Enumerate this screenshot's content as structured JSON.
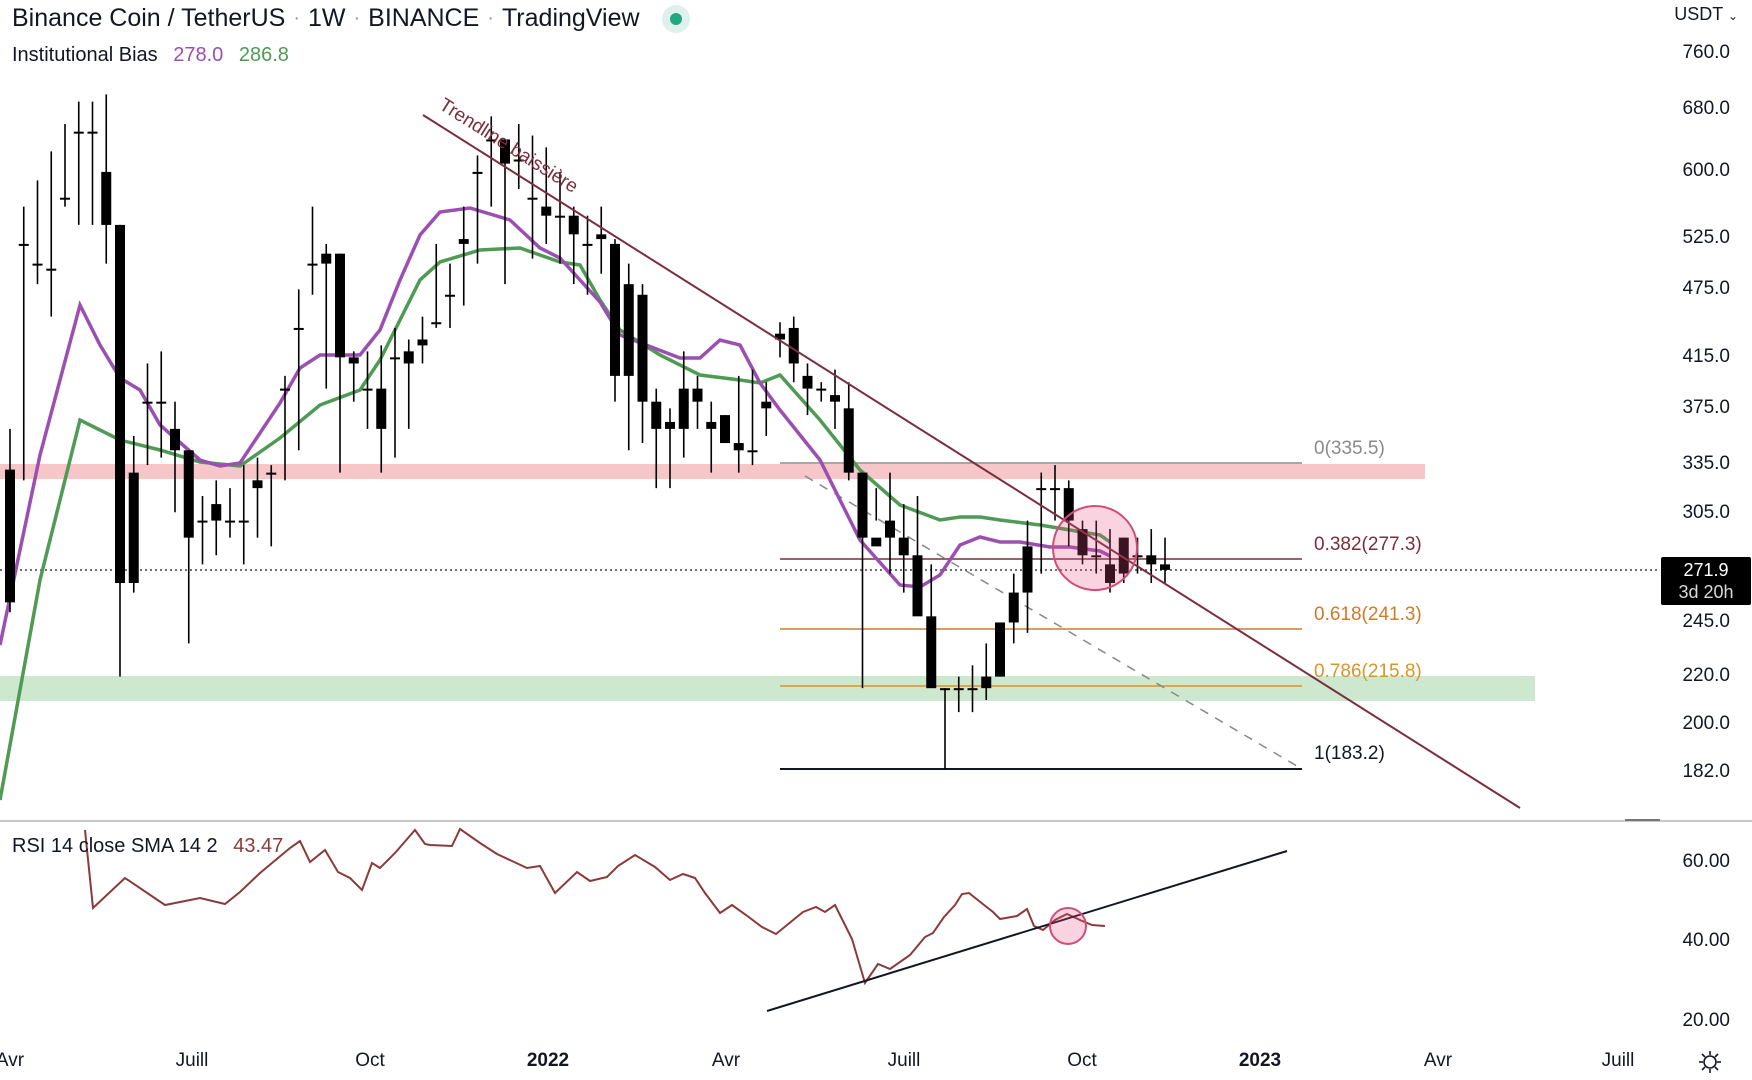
{
  "header": {
    "symbol": "Binance Coin / TetherUS",
    "interval": "1W",
    "exchange": "BINANCE",
    "source": "TradingView",
    "status_icon": "market-open-dot",
    "status_color": "#22a77f"
  },
  "indicator": {
    "name": "Institutional Bias",
    "value_fast": "278.0",
    "value_slow": "286.8",
    "color_fast": "#9b4fb0",
    "color_slow": "#4f9a55"
  },
  "rsi": {
    "label": "RSI 14 close SMA 14 2",
    "value": "43.47",
    "color": "#8b3a3a"
  },
  "price_axis": {
    "currency": "USDT",
    "ticks": [
      "760.0",
      "680.0",
      "600.0",
      "525.0",
      "475.0",
      "415.0",
      "375.0",
      "335.0",
      "305.0",
      "245.0",
      "220.0",
      "200.0",
      "182.0"
    ],
    "current_price": "271.9",
    "countdown": "3d 20h"
  },
  "rsi_axis": {
    "ticks": [
      "60.00",
      "40.00",
      "20.00"
    ]
  },
  "time_axis": {
    "ticks": [
      "Avr",
      "Juill",
      "Oct",
      "2022",
      "Avr",
      "Juill",
      "Oct",
      "2023",
      "Avr",
      "Juill"
    ]
  },
  "annotations": {
    "trendline_label": "Trendline baissière",
    "fib": [
      {
        "label": "0(335.5)",
        "color": "#8a8a8a"
      },
      {
        "label": "0.382(277.3)",
        "color": "#7a2e3e"
      },
      {
        "label": "0.618(241.3)",
        "color": "#d07a2a"
      },
      {
        "label": "0.786(215.8)",
        "color": "#d9952a"
      },
      {
        "label": "1(183.2)",
        "color": "#131722"
      }
    ],
    "resistance_zone_color": "#f7c6c9",
    "support_zone_color": "#cde8cf"
  },
  "chart_data": {
    "type": "candlestick",
    "title": "Binance Coin / TetherUS · 1W · BINANCE",
    "xlabel": "",
    "ylabel": "USDT",
    "ylim": [
      170,
      780
    ],
    "x_ticks": [
      "Avr 2021",
      "Juill 2021",
      "Oct 2021",
      "2022",
      "Avr 2022",
      "Juill 2022",
      "Oct 2022",
      "2023",
      "Avr 2023",
      "Juill 2023"
    ],
    "candles_ohlc_approx": [
      [
        332,
        360,
        250,
        255
      ],
      [
        520,
        560,
        325,
        520
      ],
      [
        500,
        590,
        480,
        500
      ],
      [
        495,
        625,
        450,
        495
      ],
      [
        570,
        660,
        560,
        570
      ],
      [
        650,
        690,
        540,
        650
      ],
      [
        650,
        690,
        540,
        650
      ],
      [
        600,
        700,
        500,
        540
      ],
      [
        540,
        540,
        220,
        265
      ],
      [
        330,
        355,
        260,
        265
      ],
      [
        380,
        410,
        335,
        380
      ],
      [
        380,
        420,
        340,
        380
      ],
      [
        360,
        380,
        305,
        345
      ],
      [
        345,
        345,
        235,
        290
      ],
      [
        300,
        315,
        275,
        300
      ],
      [
        310,
        325,
        280,
        300
      ],
      [
        300,
        320,
        290,
        300
      ],
      [
        300,
        335,
        275,
        300
      ],
      [
        320,
        340,
        290,
        325
      ],
      [
        330,
        335,
        285,
        330
      ],
      [
        390,
        400,
        325,
        390
      ],
      [
        440,
        475,
        345,
        440
      ],
      [
        500,
        560,
        470,
        500
      ],
      [
        500,
        520,
        390,
        510
      ],
      [
        510,
        510,
        330,
        415
      ],
      [
        415,
        420,
        380,
        410
      ],
      [
        390,
        420,
        360,
        390
      ],
      [
        390,
        425,
        330,
        360
      ],
      [
        415,
        440,
        340,
        415
      ],
      [
        420,
        430,
        360,
        410
      ],
      [
        425,
        450,
        410,
        430
      ],
      [
        445,
        520,
        440,
        445
      ],
      [
        470,
        500,
        440,
        470
      ],
      [
        520,
        560,
        460,
        525
      ],
      [
        600,
        620,
        500,
        600
      ],
      [
        640,
        670,
        560,
        640
      ],
      [
        610,
        640,
        480,
        640
      ],
      [
        615,
        660,
        580,
        615
      ],
      [
        570,
        645,
        505,
        570
      ],
      [
        550,
        630,
        520,
        560
      ],
      [
        550,
        600,
        500,
        550
      ],
      [
        550,
        560,
        480,
        530
      ],
      [
        520,
        550,
        470,
        520
      ],
      [
        530,
        560,
        490,
        525
      ],
      [
        520,
        525,
        380,
        400
      ],
      [
        400,
        500,
        345,
        480
      ],
      [
        470,
        480,
        350,
        380
      ],
      [
        380,
        390,
        320,
        360
      ],
      [
        365,
        375,
        320,
        360
      ],
      [
        360,
        420,
        340,
        390
      ],
      [
        380,
        400,
        360,
        390
      ],
      [
        360,
        380,
        330,
        365
      ],
      [
        350,
        370,
        350,
        370
      ],
      [
        345,
        400,
        330,
        350
      ],
      [
        345,
        405,
        335,
        345
      ],
      [
        380,
        395,
        355,
        375
      ],
      [
        430,
        445,
        415,
        435
      ],
      [
        440,
        450,
        395,
        410
      ],
      [
        400,
        410,
        370,
        390
      ],
      [
        390,
        395,
        380,
        390
      ],
      [
        385,
        405,
        360,
        380
      ],
      [
        375,
        395,
        325,
        330
      ],
      [
        330,
        330,
        215,
        290
      ],
      [
        290,
        320,
        300,
        285
      ],
      [
        300,
        330,
        270,
        290
      ],
      [
        290,
        310,
        260,
        280
      ],
      [
        280,
        315,
        270,
        248
      ],
      [
        248,
        275,
        225,
        215
      ],
      [
        215,
        215,
        183,
        215
      ],
      [
        215,
        220,
        205,
        215
      ],
      [
        215,
        225,
        205,
        215
      ],
      [
        215,
        235,
        210,
        220
      ],
      [
        220,
        245,
        220,
        245
      ],
      [
        245,
        270,
        235,
        260
      ],
      [
        260,
        300,
        240,
        285
      ],
      [
        320,
        330,
        270,
        320
      ],
      [
        320,
        335,
        300,
        320
      ],
      [
        320,
        325,
        285,
        300
      ],
      [
        295,
        300,
        275,
        280
      ],
      [
        280,
        300,
        270,
        280
      ],
      [
        275,
        295,
        260,
        265
      ],
      [
        290,
        290,
        265,
        270
      ],
      [
        280,
        290,
        270,
        280
      ],
      [
        280,
        295,
        265,
        275
      ],
      [
        275,
        290,
        265,
        272
      ]
    ],
    "series": [
      {
        "name": "Institutional Bias fast",
        "color": "#9b4fb0",
        "last": 278.0
      },
      {
        "name": "Institutional Bias slow",
        "color": "#4f9a55",
        "last": 286.8
      },
      {
        "name": "RSI 14",
        "color": "#8b3a3a",
        "last": 43.47
      }
    ],
    "horizontal_levels": {
      "fib_0": 335.5,
      "fib_0_382": 277.3,
      "fib_0_618": 241.3,
      "fib_0_786": 215.8,
      "fib_1": 183.2,
      "current_price": 271.9
    },
    "zones": [
      {
        "name": "resistance",
        "from": 325,
        "to": 340,
        "color": "#f7c6c9"
      },
      {
        "name": "support",
        "from": 208,
        "to": 222,
        "color": "#cde8cf"
      }
    ],
    "rsi_ylim": [
      15,
      75
    ],
    "legend_position": "top-left",
    "grid": false
  }
}
